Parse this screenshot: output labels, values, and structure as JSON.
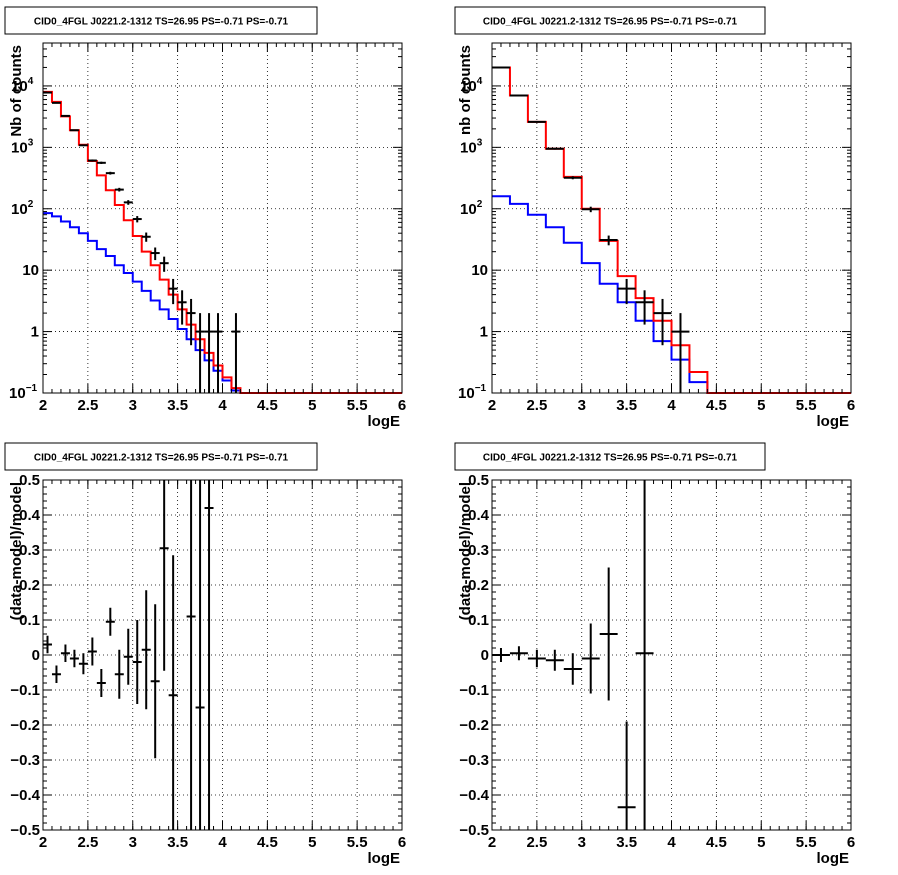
{
  "chart_data": [
    {
      "type": "histogram",
      "title": "CID0_4FGL J0221.2-1312 TS=26.95 PS=-0.71 PS=-0.71",
      "xlabel": "logE",
      "ylabel": "Nb of counts",
      "xlim": [
        2,
        6
      ],
      "ylim": [
        0.1,
        50000
      ],
      "yscale": "log",
      "grid": true,
      "x_ticks": [
        "2",
        "2.5",
        "3",
        "3.5",
        "4",
        "4.5",
        "5",
        "5.5",
        "6"
      ],
      "y_ticks": [
        {
          "value": 0.1,
          "label": "10",
          "sup": "−1"
        },
        {
          "value": 1,
          "label": "1",
          "sup": ""
        },
        {
          "value": 10,
          "label": "10",
          "sup": ""
        },
        {
          "value": 100,
          "label": "10",
          "sup": "2"
        },
        {
          "value": 1000,
          "label": "10",
          "sup": "3"
        },
        {
          "value": 10000,
          "label": "10",
          "sup": "4"
        }
      ],
      "bin_edges": [
        2,
        2.1,
        2.2,
        2.3,
        2.4,
        2.5,
        2.6,
        2.7,
        2.8,
        2.9,
        3.0,
        3.1,
        3.2,
        3.3,
        3.4,
        3.5,
        3.6,
        3.7,
        3.8,
        3.9,
        4.0,
        4.1,
        4.2,
        4.3,
        4.4,
        4.5,
        4.6,
        4.7,
        4.8,
        4.9,
        5.0,
        5.1,
        5.2,
        5.3,
        5.4,
        5.5,
        5.6,
        5.7,
        5.8,
        5.9,
        6.0
      ],
      "series": [
        {
          "color": "#0000ff",
          "values": [
            85,
            75,
            62,
            50,
            40,
            30,
            22,
            17,
            12,
            9,
            6.5,
            4.6,
            3.2,
            2.3,
            1.6,
            1.1,
            0.75,
            0.5,
            0.34,
            0.23,
            0.16,
            0.11,
            0.1,
            0.1,
            0.1,
            0.1,
            0.1,
            0.1,
            0.1,
            0.1,
            0.1,
            0.1,
            0.1,
            0.1,
            0.1,
            0.1,
            0.1,
            0.1,
            0.1,
            0.1
          ]
        },
        {
          "color": "#ff0000",
          "values": [
            8000,
            5500,
            3200,
            1900,
            1100,
            600,
            350,
            200,
            115,
            65,
            36,
            20,
            12,
            7,
            4,
            2.3,
            1.3,
            0.75,
            0.45,
            0.28,
            0.18,
            0.12,
            0.1,
            0.1,
            0.1,
            0.1,
            0.1,
            0.1,
            0.1,
            0.1,
            0.1,
            0.1,
            0.1,
            0.1,
            0.1,
            0.1,
            0.1,
            0.1,
            0.1,
            0.1
          ]
        }
      ],
      "data_points": [
        {
          "x": 2.05,
          "y": 7800,
          "err_lo": 90,
          "err_hi": 90
        },
        {
          "x": 2.15,
          "y": 5300,
          "err_lo": 75,
          "err_hi": 75
        },
        {
          "x": 2.25,
          "y": 3250,
          "err_lo": 57,
          "err_hi": 57
        },
        {
          "x": 2.35,
          "y": 1900,
          "err_lo": 44,
          "err_hi": 44
        },
        {
          "x": 2.45,
          "y": 1080,
          "err_lo": 33,
          "err_hi": 33
        },
        {
          "x": 2.55,
          "y": 610,
          "err_lo": 25,
          "err_hi": 25
        },
        {
          "x": 2.65,
          "y": 560,
          "err_lo": 24,
          "err_hi": 24
        },
        {
          "x": 2.75,
          "y": 380,
          "err_lo": 20,
          "err_hi": 20
        },
        {
          "x": 2.85,
          "y": 205,
          "err_lo": 14,
          "err_hi": 14
        },
        {
          "x": 2.95,
          "y": 127,
          "err_lo": 11,
          "err_hi": 11
        },
        {
          "x": 3.05,
          "y": 68,
          "err_lo": 8,
          "err_hi": 8
        },
        {
          "x": 3.15,
          "y": 35,
          "err_lo": 6,
          "err_hi": 6
        },
        {
          "x": 3.25,
          "y": 19,
          "err_lo": 4.4,
          "err_hi": 4.4
        },
        {
          "x": 3.35,
          "y": 13,
          "err_lo": 3.6,
          "err_hi": 3.6
        },
        {
          "x": 3.45,
          "y": 5,
          "err_lo": 2.2,
          "err_hi": 2.2
        },
        {
          "x": 3.55,
          "y": 3,
          "err_lo": 1.7,
          "err_hi": 1.7
        },
        {
          "x": 3.65,
          "y": 2,
          "err_lo": 1.4,
          "err_hi": 1.4
        },
        {
          "x": 3.75,
          "y": 1,
          "err_lo": 1,
          "err_hi": 1
        },
        {
          "x": 3.85,
          "y": 1,
          "err_lo": 1,
          "err_hi": 1
        },
        {
          "x": 3.95,
          "y": 1,
          "err_lo": 1,
          "err_hi": 1
        },
        {
          "x": 4.15,
          "y": 1,
          "err_lo": 1,
          "err_hi": 1
        }
      ]
    },
    {
      "type": "histogram",
      "title": "CID0_4FGL J0221.2-1312 TS=26.95 PS=-0.71 PS=-0.71",
      "xlabel": "logE",
      "ylabel": "nb of counts",
      "xlim": [
        2,
        6
      ],
      "ylim": [
        0.1,
        50000
      ],
      "yscale": "log",
      "grid": true,
      "x_ticks": [
        "2",
        "2.5",
        "3",
        "3.5",
        "4",
        "4.5",
        "5",
        "5.5",
        "6"
      ],
      "y_ticks": [
        {
          "value": 0.1,
          "label": "10",
          "sup": "−1"
        },
        {
          "value": 1,
          "label": "1",
          "sup": ""
        },
        {
          "value": 10,
          "label": "10",
          "sup": ""
        },
        {
          "value": 100,
          "label": "10",
          "sup": "2"
        },
        {
          "value": 1000,
          "label": "10",
          "sup": "3"
        },
        {
          "value": 10000,
          "label": "10",
          "sup": "4"
        }
      ],
      "bin_edges": [
        2,
        2.2,
        2.4,
        2.6,
        2.8,
        3.0,
        3.2,
        3.4,
        3.6,
        3.8,
        4.0,
        4.2,
        4.4,
        4.6,
        4.8,
        5.0,
        5.2,
        5.4,
        5.6,
        5.8,
        6.0
      ],
      "series": [
        {
          "color": "#0000ff",
          "values": [
            160,
            120,
            80,
            50,
            28,
            13,
            6,
            3,
            1.5,
            0.7,
            0.35,
            0.15,
            0.1,
            0.1,
            0.1,
            0.1,
            0.1,
            0.1,
            0.1,
            0.1
          ]
        },
        {
          "color": "#ff0000",
          "values": [
            20000,
            7000,
            2600,
            950,
            330,
            100,
            30,
            8,
            3.5,
            1.5,
            0.6,
            0.22,
            0.1,
            0.1,
            0.1,
            0.1,
            0.1,
            0.1,
            0.1,
            0.1
          ]
        }
      ],
      "data_points": [
        {
          "x": 2.1,
          "y": 20000,
          "err_lo": 141,
          "err_hi": 141
        },
        {
          "x": 2.3,
          "y": 7000,
          "err_lo": 84,
          "err_hi": 84
        },
        {
          "x": 2.5,
          "y": 2600,
          "err_lo": 51,
          "err_hi": 51
        },
        {
          "x": 2.7,
          "y": 950,
          "err_lo": 31,
          "err_hi": 31
        },
        {
          "x": 2.9,
          "y": 320,
          "err_lo": 18,
          "err_hi": 18
        },
        {
          "x": 3.1,
          "y": 98,
          "err_lo": 10,
          "err_hi": 10
        },
        {
          "x": 3.3,
          "y": 31,
          "err_lo": 5.6,
          "err_hi": 5.6
        },
        {
          "x": 3.5,
          "y": 5,
          "err_lo": 2.2,
          "err_hi": 2.2
        },
        {
          "x": 3.7,
          "y": 3,
          "err_lo": 1.7,
          "err_hi": 1.7
        },
        {
          "x": 3.9,
          "y": 2,
          "err_lo": 1.4,
          "err_hi": 1.4
        },
        {
          "x": 4.1,
          "y": 1,
          "err_lo": 1,
          "err_hi": 1
        }
      ]
    },
    {
      "type": "scatter",
      "title": "CID0_4FGL J0221.2-1312 TS=26.95 PS=-0.71 PS=-0.71",
      "xlabel": "logE",
      "ylabel": "(data-model)/model",
      "xlim": [
        2,
        6
      ],
      "ylim": [
        -0.5,
        0.5
      ],
      "yscale": "linear",
      "grid": true,
      "x_ticks": [
        "2",
        "2.5",
        "3",
        "3.5",
        "4",
        "4.5",
        "5",
        "5.5",
        "6"
      ],
      "y_ticks": [
        "−0.5",
        "−0.4",
        "−0.3",
        "−0.2",
        "−0.1",
        "0",
        "0.1",
        "0.2",
        "0.3",
        "0.4",
        "0.5"
      ],
      "y_tick_values": [
        -0.5,
        -0.4,
        -0.3,
        -0.2,
        -0.1,
        0,
        0.1,
        0.2,
        0.3,
        0.4,
        0.5
      ],
      "data_points": [
        {
          "x": 2.05,
          "y": 0.03,
          "err": 0.025,
          "xerr": 0.05
        },
        {
          "x": 2.15,
          "y": -0.055,
          "err": 0.025,
          "xerr": 0.05
        },
        {
          "x": 2.25,
          "y": 0.005,
          "err": 0.025,
          "xerr": 0.05
        },
        {
          "x": 2.35,
          "y": -0.01,
          "err": 0.025,
          "xerr": 0.05
        },
        {
          "x": 2.45,
          "y": -0.025,
          "err": 0.03,
          "xerr": 0.05
        },
        {
          "x": 2.55,
          "y": 0.01,
          "err": 0.04,
          "xerr": 0.05
        },
        {
          "x": 2.65,
          "y": -0.08,
          "err": 0.04,
          "xerr": 0.05
        },
        {
          "x": 2.75,
          "y": 0.095,
          "err": 0.04,
          "xerr": 0.05
        },
        {
          "x": 2.85,
          "y": -0.055,
          "err": 0.07,
          "xerr": 0.05
        },
        {
          "x": 2.95,
          "y": -0.005,
          "err": 0.08,
          "xerr": 0.05
        },
        {
          "x": 3.05,
          "y": -0.02,
          "err": 0.12,
          "xerr": 0.05
        },
        {
          "x": 3.15,
          "y": 0.015,
          "err": 0.17,
          "xerr": 0.05
        },
        {
          "x": 3.25,
          "y": -0.075,
          "err": 0.22,
          "xerr": 0.05
        },
        {
          "x": 3.35,
          "y": 0.305,
          "err": 0.35,
          "xerr": 0.05
        },
        {
          "x": 3.45,
          "y": -0.115,
          "err": 0.4,
          "xerr": 0.05
        },
        {
          "x": 3.65,
          "y": 0.11,
          "err": 0.7,
          "xerr": 0.05
        },
        {
          "x": 3.75,
          "y": -0.15,
          "err": 0.8,
          "xerr": 0.05
        },
        {
          "x": 3.85,
          "y": 0.42,
          "err": 1.0,
          "xerr": 0.05
        }
      ]
    },
    {
      "type": "scatter",
      "title": "CID0_4FGL J0221.2-1312 TS=26.95 PS=-0.71 PS=-0.71",
      "xlabel": "logE",
      "ylabel": "(data-model)/model",
      "xlim": [
        2,
        6
      ],
      "ylim": [
        -0.5,
        0.5
      ],
      "yscale": "linear",
      "grid": true,
      "x_ticks": [
        "2",
        "2.5",
        "3",
        "3.5",
        "4",
        "4.5",
        "5",
        "5.5",
        "6"
      ],
      "y_ticks": [
        "−0.5",
        "−0.4",
        "−0.3",
        "−0.2",
        "−0.1",
        "0",
        "0.1",
        "0.2",
        "0.3",
        "0.4",
        "0.5"
      ],
      "y_tick_values": [
        -0.5,
        -0.4,
        -0.3,
        -0.2,
        -0.1,
        0,
        0.1,
        0.2,
        0.3,
        0.4,
        0.5
      ],
      "data_points": [
        {
          "x": 2.1,
          "y": 0.0,
          "err": 0.02,
          "xerr": 0.1
        },
        {
          "x": 2.3,
          "y": 0.005,
          "err": 0.02,
          "xerr": 0.1
        },
        {
          "x": 2.5,
          "y": -0.01,
          "err": 0.025,
          "xerr": 0.1
        },
        {
          "x": 2.7,
          "y": -0.015,
          "err": 0.03,
          "xerr": 0.1
        },
        {
          "x": 2.9,
          "y": -0.04,
          "err": 0.045,
          "xerr": 0.1
        },
        {
          "x": 3.1,
          "y": -0.01,
          "err": 0.1,
          "xerr": 0.1
        },
        {
          "x": 3.3,
          "y": 0.06,
          "err": 0.19,
          "xerr": 0.1
        },
        {
          "x": 3.5,
          "y": -0.435,
          "err": 0.245,
          "xerr": 0.1
        },
        {
          "x": 3.7,
          "y": 0.005,
          "err": 0.6,
          "xerr": 0.1
        }
      ]
    }
  ]
}
